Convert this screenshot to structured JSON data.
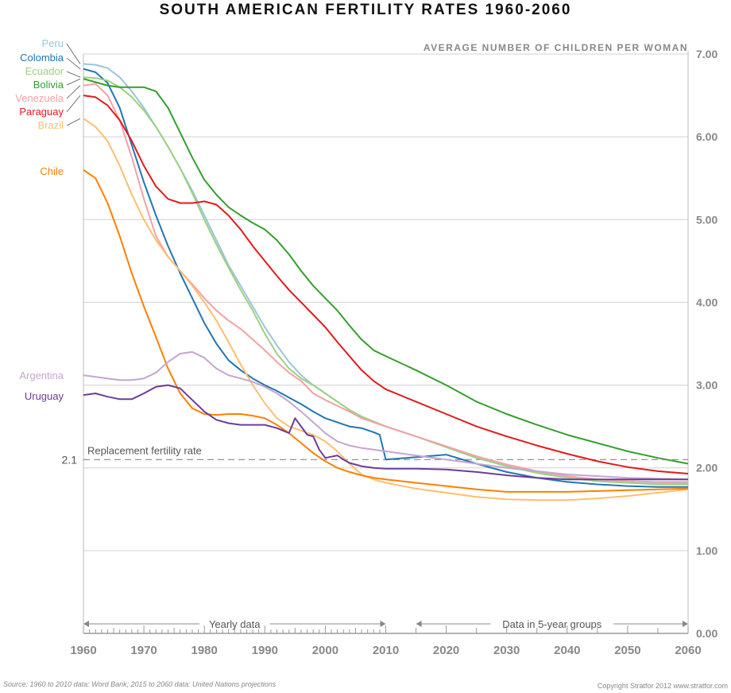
{
  "chart_data": {
    "type": "line",
    "title": "SOUTH AMERICAN FERTILITY RATES 1960-2060",
    "ylabel": "AVERAGE NUMBER OF CHILDREN PER WOMAN",
    "xlim": [
      1960,
      2060
    ],
    "ylim": [
      0,
      7
    ],
    "grid": true,
    "x_ticks": [
      "1960",
      "1970",
      "1980",
      "1990",
      "2000",
      "2010",
      "2020",
      "2030",
      "2040",
      "2050",
      "2060"
    ],
    "y_ticks": [
      "0.00",
      "1.00",
      "2.00",
      "3.00",
      "4.00",
      "5.00",
      "6.00",
      "7.00"
    ],
    "series": [
      {
        "name": "Peru",
        "color": "#99c5df",
        "x": [
          1960,
          1962,
          1964,
          1966,
          1968,
          1970,
          1972,
          1974,
          1976,
          1978,
          1980,
          1982,
          1984,
          1986,
          1988,
          1990,
          1992,
          1994,
          1996,
          1998,
          2000,
          2002,
          2004,
          2006,
          2008,
          2010,
          2015,
          2020,
          2025,
          2030,
          2035,
          2040,
          2045,
          2050,
          2055,
          2060
        ],
        "y": [
          6.88,
          6.87,
          6.83,
          6.72,
          6.55,
          6.35,
          6.12,
          5.88,
          5.62,
          5.35,
          5.05,
          4.75,
          4.45,
          4.2,
          3.95,
          3.7,
          3.48,
          3.28,
          3.12,
          3.0,
          2.9,
          2.8,
          2.7,
          2.62,
          2.55,
          2.5,
          2.38,
          2.25,
          2.12,
          2.02,
          1.94,
          1.88,
          1.84,
          1.82,
          1.81,
          1.82
        ]
      },
      {
        "name": "Colombia",
        "color": "#1f77b4",
        "x": [
          1960,
          1962,
          1964,
          1966,
          1968,
          1970,
          1972,
          1974,
          1976,
          1978,
          1980,
          1982,
          1984,
          1986,
          1988,
          1990,
          1992,
          1994,
          1996,
          1998,
          2000,
          2002,
          2004,
          2006,
          2008,
          2009,
          2010,
          2015,
          2020,
          2025,
          2030,
          2035,
          2040,
          2045,
          2050,
          2055,
          2060
        ],
        "y": [
          6.82,
          6.78,
          6.65,
          6.35,
          5.9,
          5.45,
          5.05,
          4.68,
          4.35,
          4.05,
          3.75,
          3.5,
          3.3,
          3.18,
          3.08,
          3.0,
          2.93,
          2.85,
          2.77,
          2.68,
          2.6,
          2.55,
          2.5,
          2.48,
          2.43,
          2.4,
          2.1,
          2.13,
          2.16,
          2.05,
          1.95,
          1.88,
          1.83,
          1.8,
          1.78,
          1.77,
          1.77
        ]
      },
      {
        "name": "Ecuador",
        "color": "#9cd17e",
        "x": [
          1960,
          1962,
          1964,
          1966,
          1968,
          1970,
          1972,
          1974,
          1976,
          1978,
          1980,
          1982,
          1984,
          1986,
          1988,
          1990,
          1992,
          1994,
          1996,
          1998,
          2000,
          2002,
          2004,
          2006,
          2008,
          2010,
          2015,
          2020,
          2025,
          2030,
          2035,
          2040,
          2045,
          2050,
          2055,
          2060
        ],
        "y": [
          6.72,
          6.71,
          6.68,
          6.6,
          6.48,
          6.32,
          6.12,
          5.88,
          5.62,
          5.32,
          5.0,
          4.7,
          4.42,
          4.15,
          3.9,
          3.62,
          3.38,
          3.2,
          3.08,
          3.0,
          2.9,
          2.8,
          2.7,
          2.62,
          2.56,
          2.5,
          2.38,
          2.25,
          2.12,
          2.02,
          1.94,
          1.88,
          1.84,
          1.82,
          1.8,
          1.8
        ]
      },
      {
        "name": "Bolivia",
        "color": "#33a02c",
        "x": [
          1960,
          1962,
          1964,
          1966,
          1968,
          1970,
          1972,
          1974,
          1976,
          1978,
          1980,
          1982,
          1984,
          1986,
          1988,
          1990,
          1992,
          1994,
          1996,
          1998,
          2000,
          2002,
          2004,
          2006,
          2008,
          2010,
          2015,
          2020,
          2025,
          2030,
          2035,
          2040,
          2045,
          2050,
          2055,
          2060
        ],
        "y": [
          6.7,
          6.66,
          6.62,
          6.6,
          6.6,
          6.6,
          6.55,
          6.35,
          6.05,
          5.75,
          5.48,
          5.3,
          5.15,
          5.05,
          4.96,
          4.88,
          4.75,
          4.58,
          4.38,
          4.2,
          4.05,
          3.9,
          3.72,
          3.55,
          3.42,
          3.35,
          3.18,
          3.0,
          2.8,
          2.65,
          2.52,
          2.4,
          2.3,
          2.2,
          2.12,
          2.05
        ]
      },
      {
        "name": "Venezuela",
        "color": "#f4a1a6",
        "x": [
          1960,
          1962,
          1964,
          1966,
          1968,
          1970,
          1972,
          1974,
          1976,
          1978,
          1980,
          1982,
          1984,
          1986,
          1988,
          1990,
          1992,
          1994,
          1996,
          1998,
          2000,
          2002,
          2004,
          2006,
          2008,
          2010,
          2015,
          2020,
          2025,
          2030,
          2035,
          2040,
          2045,
          2050,
          2055,
          2060
        ],
        "y": [
          6.62,
          6.64,
          6.5,
          6.2,
          5.75,
          5.25,
          4.8,
          4.55,
          4.38,
          4.22,
          4.05,
          3.9,
          3.78,
          3.68,
          3.55,
          3.42,
          3.28,
          3.15,
          3.05,
          2.9,
          2.82,
          2.75,
          2.68,
          2.6,
          2.55,
          2.5,
          2.38,
          2.26,
          2.14,
          2.04,
          1.96,
          1.9,
          1.86,
          1.84,
          1.83,
          1.83
        ]
      },
      {
        "name": "Paraguay",
        "color": "#e31a1c",
        "x": [
          1960,
          1962,
          1964,
          1966,
          1968,
          1970,
          1972,
          1974,
          1976,
          1978,
          1980,
          1982,
          1984,
          1986,
          1988,
          1990,
          1992,
          1994,
          1996,
          1998,
          2000,
          2002,
          2004,
          2006,
          2008,
          2010,
          2015,
          2020,
          2025,
          2030,
          2035,
          2040,
          2045,
          2050,
          2055,
          2060
        ],
        "y": [
          6.5,
          6.48,
          6.38,
          6.2,
          5.95,
          5.65,
          5.4,
          5.25,
          5.2,
          5.2,
          5.22,
          5.18,
          5.05,
          4.88,
          4.68,
          4.5,
          4.32,
          4.15,
          4.0,
          3.85,
          3.7,
          3.52,
          3.35,
          3.18,
          3.05,
          2.95,
          2.8,
          2.65,
          2.5,
          2.38,
          2.27,
          2.17,
          2.08,
          2.01,
          1.96,
          1.93
        ]
      },
      {
        "name": "Brazil",
        "color": "#fdbf6f",
        "x": [
          1960,
          1962,
          1964,
          1966,
          1968,
          1970,
          1972,
          1974,
          1976,
          1978,
          1980,
          1982,
          1984,
          1986,
          1988,
          1990,
          1992,
          1994,
          1996,
          1998,
          2000,
          2002,
          2004,
          2006,
          2008,
          2010,
          2015,
          2020,
          2025,
          2030,
          2035,
          2040,
          2045,
          2050,
          2055,
          2060
        ],
        "y": [
          6.22,
          6.12,
          5.95,
          5.65,
          5.3,
          5.0,
          4.75,
          4.55,
          4.38,
          4.2,
          4.0,
          3.78,
          3.52,
          3.25,
          3.0,
          2.78,
          2.6,
          2.5,
          2.45,
          2.4,
          2.32,
          2.2,
          2.05,
          1.92,
          1.86,
          1.82,
          1.75,
          1.7,
          1.65,
          1.62,
          1.61,
          1.61,
          1.63,
          1.66,
          1.7,
          1.74
        ]
      },
      {
        "name": "Chile",
        "color": "#ff7f00",
        "x": [
          1960,
          1962,
          1964,
          1966,
          1968,
          1970,
          1972,
          1974,
          1976,
          1978,
          1980,
          1982,
          1984,
          1986,
          1988,
          1990,
          1992,
          1994,
          1996,
          1998,
          2000,
          2002,
          2004,
          2006,
          2008,
          2010,
          2015,
          2020,
          2025,
          2030,
          2035,
          2040,
          2045,
          2050,
          2055,
          2060
        ],
        "y": [
          5.6,
          5.5,
          5.2,
          4.8,
          4.35,
          3.95,
          3.58,
          3.2,
          2.9,
          2.72,
          2.65,
          2.64,
          2.65,
          2.65,
          2.63,
          2.6,
          2.52,
          2.42,
          2.3,
          2.18,
          2.08,
          2.0,
          1.95,
          1.91,
          1.88,
          1.86,
          1.82,
          1.78,
          1.74,
          1.71,
          1.71,
          1.71,
          1.72,
          1.73,
          1.74,
          1.75
        ]
      },
      {
        "name": "Argentina",
        "color": "#c5a5d0",
        "x": [
          1960,
          1962,
          1964,
          1966,
          1968,
          1970,
          1972,
          1974,
          1976,
          1978,
          1980,
          1982,
          1984,
          1986,
          1988,
          1990,
          1992,
          1994,
          1996,
          1998,
          2000,
          2002,
          2004,
          2006,
          2008,
          2010,
          2015,
          2020,
          2025,
          2030,
          2035,
          2040,
          2045,
          2050,
          2055,
          2060
        ],
        "y": [
          3.12,
          3.1,
          3.08,
          3.06,
          3.06,
          3.08,
          3.15,
          3.28,
          3.38,
          3.4,
          3.33,
          3.2,
          3.12,
          3.08,
          3.04,
          2.98,
          2.9,
          2.8,
          2.68,
          2.55,
          2.42,
          2.32,
          2.27,
          2.24,
          2.22,
          2.2,
          2.15,
          2.1,
          2.05,
          2.0,
          1.96,
          1.92,
          1.9,
          1.88,
          1.87,
          1.86
        ]
      },
      {
        "name": "Uruguay",
        "color": "#6a3d9a",
        "x": [
          1960,
          1962,
          1964,
          1966,
          1968,
          1970,
          1972,
          1974,
          1976,
          1978,
          1980,
          1982,
          1984,
          1986,
          1988,
          1990,
          1992,
          1994,
          1995,
          1996,
          1997,
          1998,
          1999,
          2000,
          2002,
          2003,
          2004,
          2006,
          2008,
          2010,
          2015,
          2020,
          2025,
          2030,
          2035,
          2040,
          2045,
          2050,
          2055,
          2060
        ],
        "y": [
          2.88,
          2.9,
          2.86,
          2.83,
          2.83,
          2.9,
          2.98,
          3.0,
          2.96,
          2.82,
          2.68,
          2.58,
          2.54,
          2.52,
          2.52,
          2.52,
          2.48,
          2.42,
          2.6,
          2.5,
          2.4,
          2.38,
          2.22,
          2.12,
          2.15,
          2.1,
          2.06,
          2.02,
          2.0,
          1.99,
          1.99,
          1.98,
          1.95,
          1.91,
          1.88,
          1.86,
          1.86,
          1.86,
          1.86,
          1.86
        ]
      }
    ],
    "annotations": {
      "replacement_value": "2.1",
      "replacement_label": "Replacement fertility rate",
      "replacement_y": 2.1,
      "yearly_label": "Yearly data",
      "yearly_range": [
        1960,
        2010
      ],
      "groups_label": "Data in 5-year groups",
      "groups_range": [
        2015,
        2060
      ]
    }
  },
  "footer": {
    "source": "Source: 1960 to 2010 data: Word Bank; 2015 to 2060 data: United Nations projections",
    "copyright": "Copyright Stratfor 2012   www.stratfor.com"
  }
}
